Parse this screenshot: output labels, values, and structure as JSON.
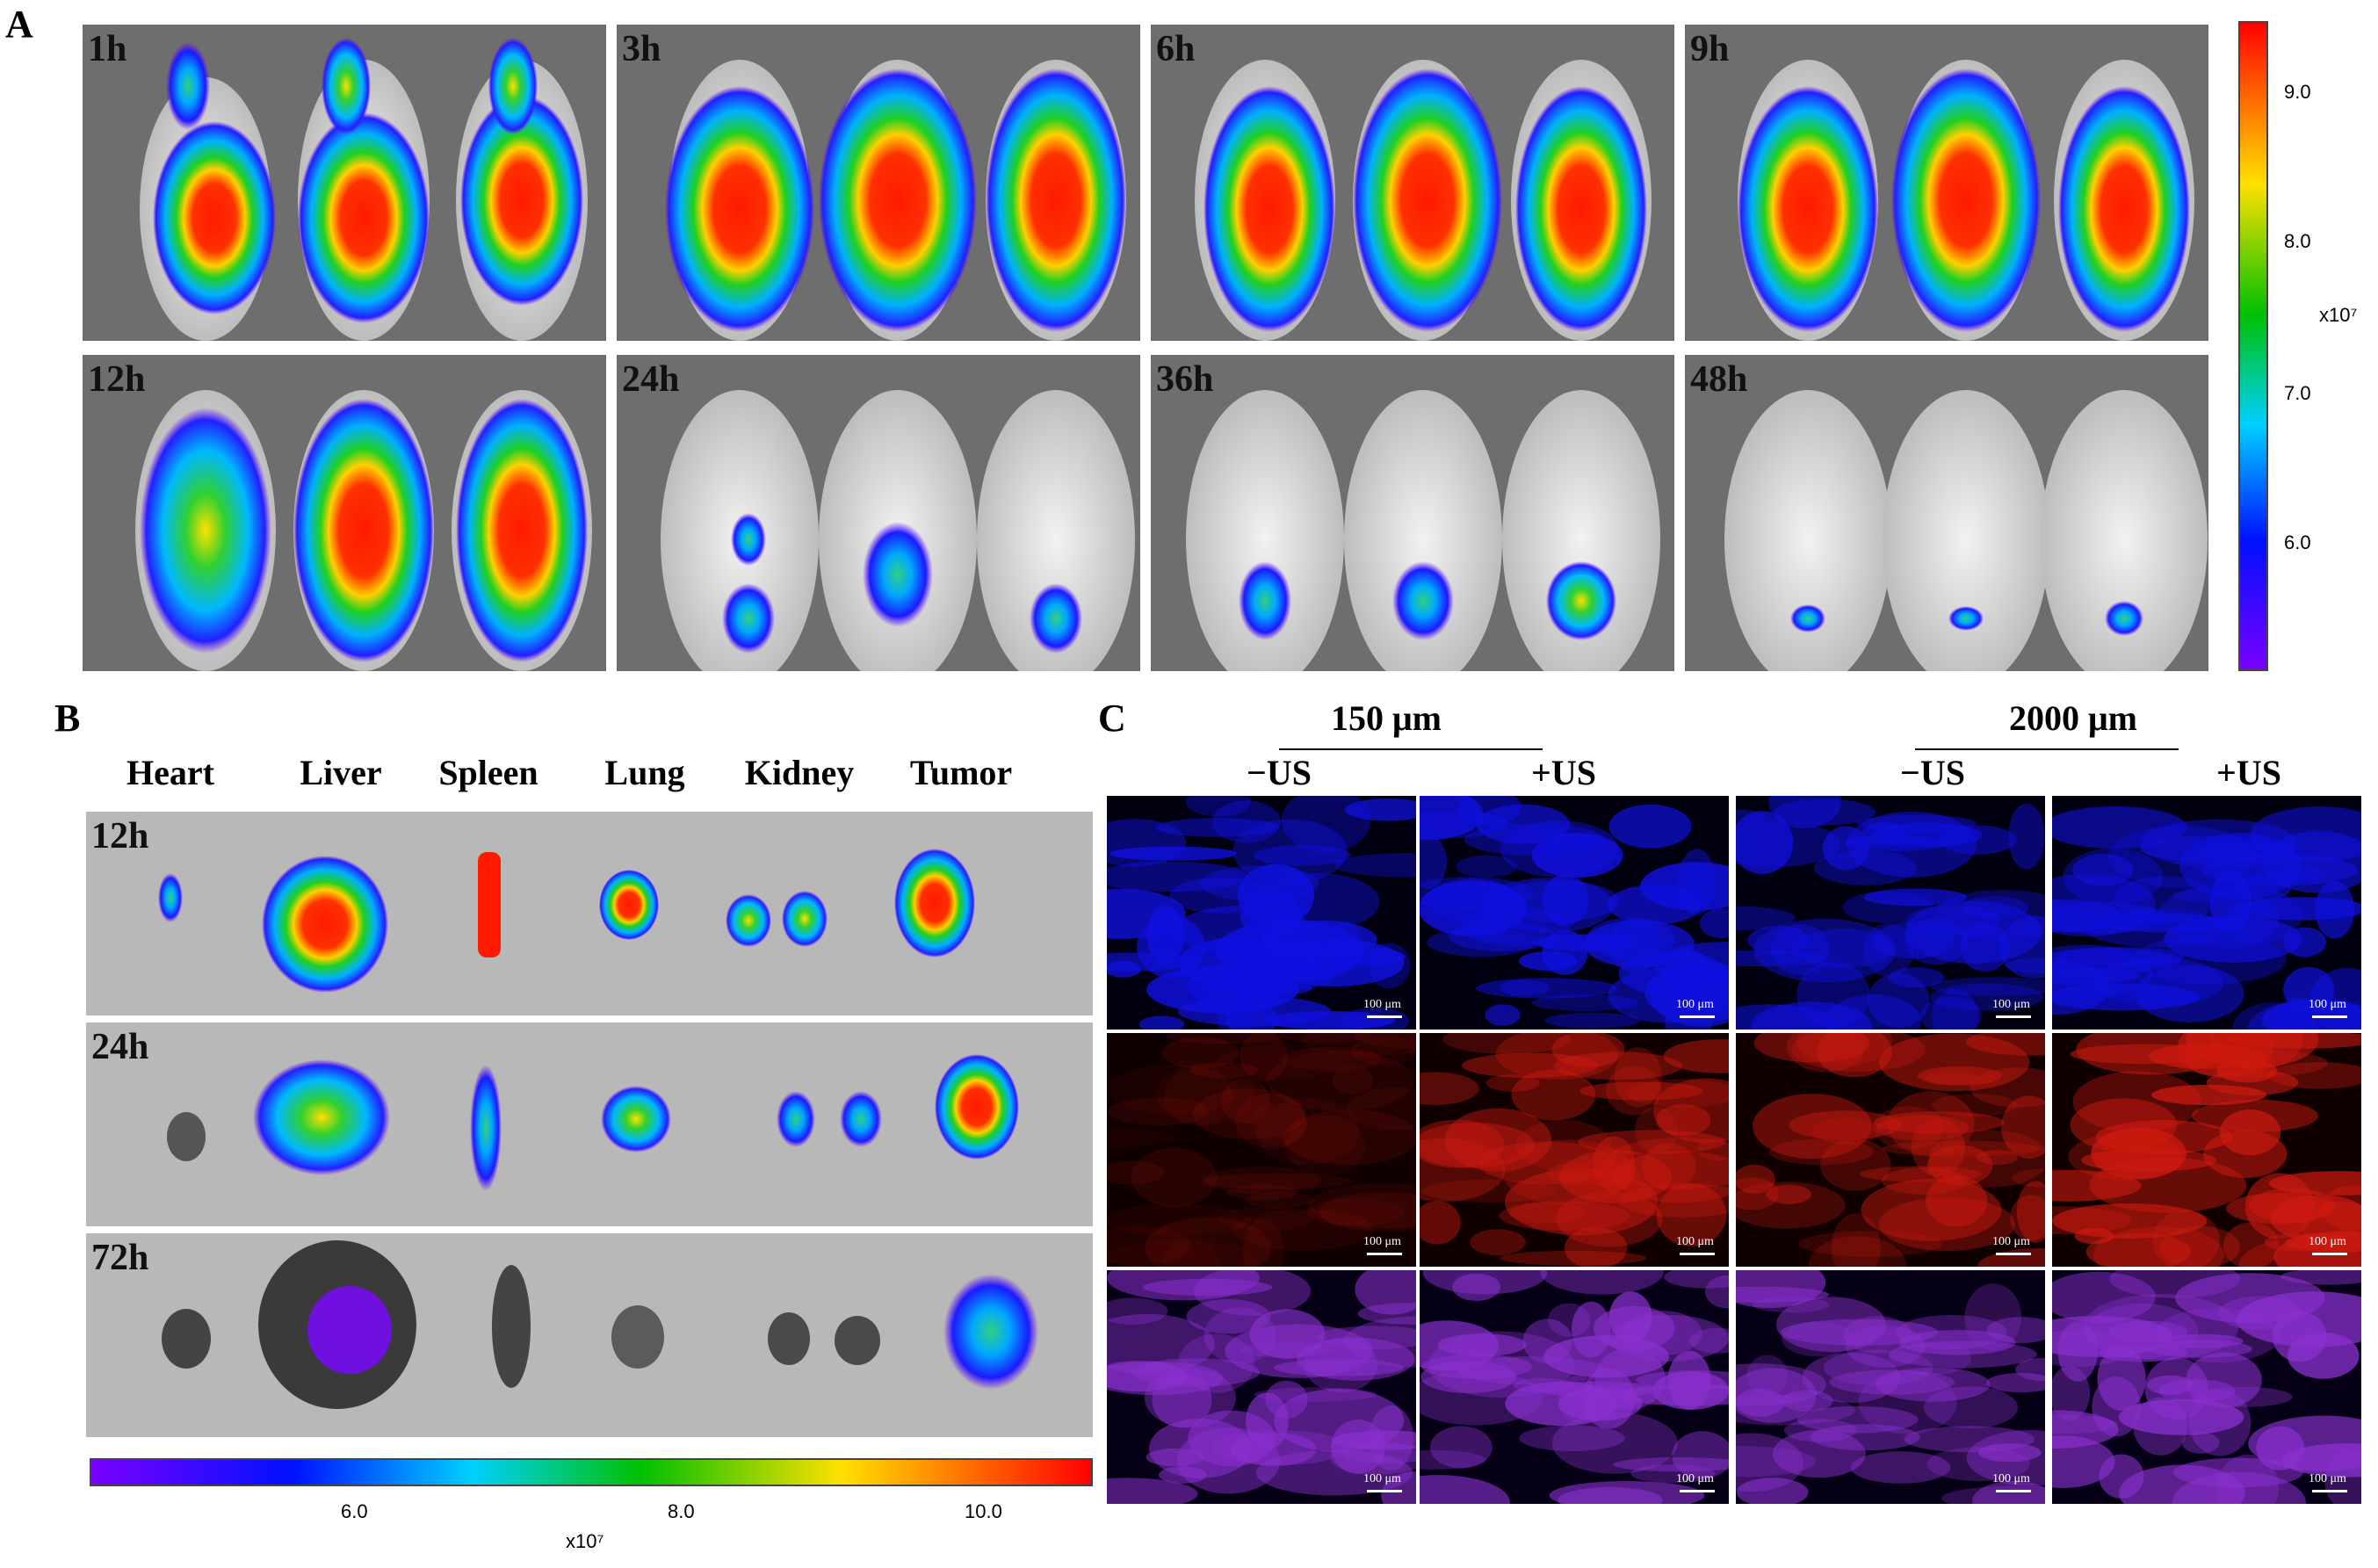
{
  "panel_a": {
    "letter": "A",
    "time_labels": [
      "1h",
      "3h",
      "6h",
      "9h",
      "12h",
      "24h",
      "36h",
      "48h"
    ],
    "colorbar": {
      "ticks": [
        "9.0",
        "8.0",
        "7.0",
        "6.0"
      ],
      "unit": "x10⁷"
    }
  },
  "panel_b": {
    "letter": "B",
    "organs": [
      "Heart",
      "Liver",
      "Spleen",
      "Lung",
      "Kidney",
      "Tumor"
    ],
    "time_labels": [
      "12h",
      "24h",
      "72h"
    ],
    "colorbar": {
      "ticks": [
        "6.0",
        "8.0",
        "10.0"
      ],
      "unit": "x10⁷"
    }
  },
  "panel_c": {
    "letter": "C",
    "group_150": "150 μm",
    "group_2000": "2000 μm",
    "col_labels": [
      "−US",
      "+US",
      "−US",
      "+US"
    ],
    "scalebar": "100 μm"
  },
  "colors": {
    "heat_high": "#ff1a00",
    "heat_mid": "#00c800",
    "heat_low": "#1020ff",
    "dapi_blue": "#1010e0",
    "fl_red": "#d01a10",
    "merge_purple": "#8a30d0"
  }
}
